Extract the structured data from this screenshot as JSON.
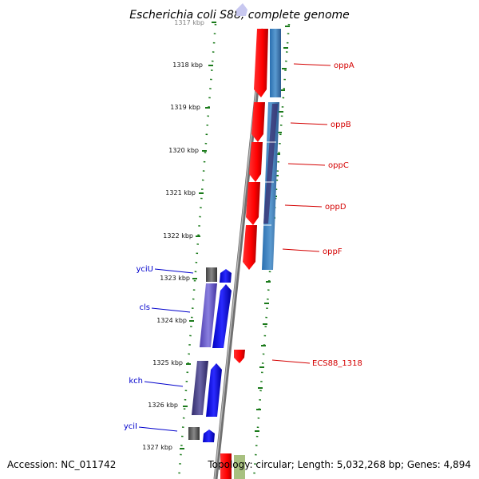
{
  "title": "Escherichia coli S88, complete genome",
  "footer": {
    "accession": "Accession: NC_011742",
    "topology": "Topology: circular; Length: 5,032,268 bp; Genes: 4,894"
  },
  "ticks": [
    "1317 kbp",
    "1318 kbp",
    "1319 kbp",
    "1320 kbp",
    "1321 kbp",
    "1322 kbp",
    "1323 kbp",
    "1324 kbp",
    "1325 kbp",
    "1326 kbp",
    "1327 kbp"
  ],
  "genes_right": [
    "oppA",
    "oppB",
    "oppC",
    "oppD",
    "oppF",
    "ECS88_1318"
  ],
  "genes_left": [
    "yciU",
    "cls",
    "kch",
    "yciI"
  ],
  "colors": {
    "forward_gene": "#ff0000",
    "reverse_gene": "#0000ff",
    "cds_blue": "#4682b4",
    "cds_purple": "#6a5acd",
    "tick_green": "#1a7a1a",
    "backbone": "#888888",
    "label_red": "#d40000",
    "label_blue": "#0000cc"
  }
}
